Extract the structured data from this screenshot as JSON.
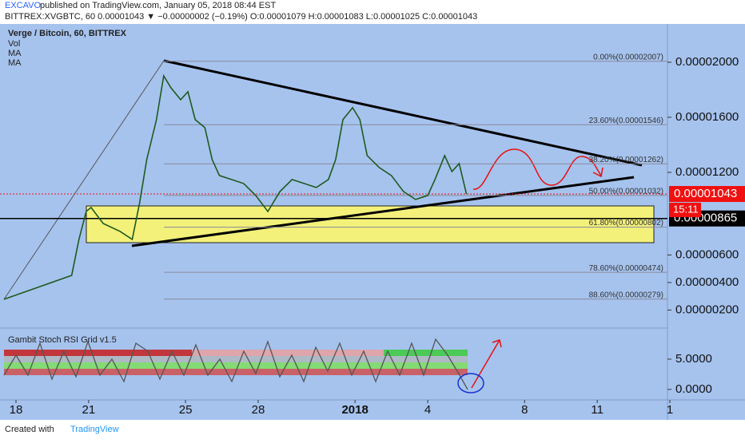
{
  "header": {
    "author": "EXCAVO",
    "published": "published on TradingView.com, January 05, 2018 08:44 EST",
    "quote": "BITTREX:XVGBTC, 60  0.00001043 ▼ −0.00000002 (−0.19%) O:0.00001079 H:0.00001083 L:0.00001025 C:0.00001043"
  },
  "legend": {
    "vol": "Vol",
    "ma1": "MA",
    "ma2": "MA"
  },
  "footer": {
    "created": "Created with",
    "brand": "TradingView"
  },
  "chart_data": {
    "type": "line",
    "x": [
      -0.5,
      2.3,
      2.6,
      2.9,
      3.1,
      3.6,
      4.3,
      4.8,
      5.1,
      5.4,
      5.8,
      6.1,
      6.4,
      6.8,
      7.1,
      7.4,
      7.8,
      8.1,
      8.4,
      8.9,
      9.4,
      9.9,
      10.4,
      10.9,
      11.4,
      11.9,
      12.4,
      12.9,
      13.2,
      13.5,
      13.9,
      14.2,
      14.5,
      15.0,
      15.5,
      16.0,
      16.5,
      17.0,
      17.3,
      17.7,
      18.0,
      18.3,
      18.6
    ],
    "series": [
      {
        "name": "Verge / Bitcoin, 60, BITTREX",
        "color": "#1e5a1e",
        "values": [
          2.78e-06,
          4.52e-06,
          7.13e-06,
          9.16e-06,
          9.45e-06,
          8.29e-06,
          7.71e-06,
          7.13e-06,
          9.74e-06,
          1.293e-05,
          1.583e-05,
          1.901e-05,
          1.814e-05,
          1.728e-05,
          1.786e-05,
          1.583e-05,
          1.525e-05,
          1.293e-05,
          1.177e-05,
          1.148e-05,
          1.119e-05,
          1.032e-05,
          9.16e-06,
          1.061e-05,
          1.148e-05,
          1.119e-05,
          1.09e-05,
          1.148e-05,
          1.293e-05,
          1.583e-05,
          1.67e-05,
          1.583e-05,
          1.322e-05,
          1.235e-05,
          1.177e-05,
          1.061e-05,
          1.003e-05,
          1.032e-05,
          1.148e-05,
          1.322e-05,
          1.206e-05,
          1.264e-05,
          1.043e-05
        ]
      }
    ],
    "xlim": [
      -0.66,
      26.9
    ],
    "xticks": [
      {
        "value": 0,
        "label": "18"
      },
      {
        "value": 3,
        "label": "21"
      },
      {
        "value": 7,
        "label": "25"
      },
      {
        "value": 10,
        "label": "28"
      },
      {
        "value": 14,
        "label": "2018"
      },
      {
        "value": 17,
        "label": "4"
      },
      {
        "value": 21,
        "label": "8"
      },
      {
        "value": 24,
        "label": "11"
      },
      {
        "value": 27,
        "label": "1"
      }
    ],
    "ylim": [
      7.5e-07,
      2.278e-05
    ],
    "yticks": [
      {
        "value": 2e-05,
        "label": "0.00002000"
      },
      {
        "value": 1.6e-05,
        "label": "0.00001600"
      },
      {
        "value": 1.2e-05,
        "label": "0.00001200"
      },
      {
        "value": 6e-06,
        "label": "0.00000600"
      },
      {
        "value": 4e-06,
        "label": "0.00000400"
      },
      {
        "value": 2e-06,
        "label": "0.00000200"
      }
    ],
    "fib": [
      {
        "label": "0.00%(0.00002007)",
        "price": 2.007e-05
      },
      {
        "label": "23.60%(0.00001546)",
        "price": 1.546e-05
      },
      {
        "label": "38.20%(0.00001262)",
        "price": 1.262e-05
      },
      {
        "label": "50.00%(0.00001032)",
        "price": 1.032e-05
      },
      {
        "label": "61.80%(0.00000802)",
        "price": 8.02e-06
      },
      {
        "label": "78.60%(0.00000474)",
        "price": 4.74e-06
      },
      {
        "label": "88.60%(0.00000279)",
        "price": 2.79e-06
      }
    ],
    "last_price": {
      "value": 1.043e-05,
      "label": "0.00001043",
      "color": "#f01010",
      "countdown": "15:11"
    },
    "crosshair": {
      "value": 8.65e-06,
      "label": "0.00000865"
    },
    "rsi": {
      "title": "Gambit Stoch RSI Grid v1.5",
      "ylim": [
        -1.6,
        10
      ],
      "yticks": [
        {
          "value": 5,
          "label": "5.0000"
        },
        {
          "value": 0,
          "label": "0.0000"
        }
      ]
    }
  }
}
